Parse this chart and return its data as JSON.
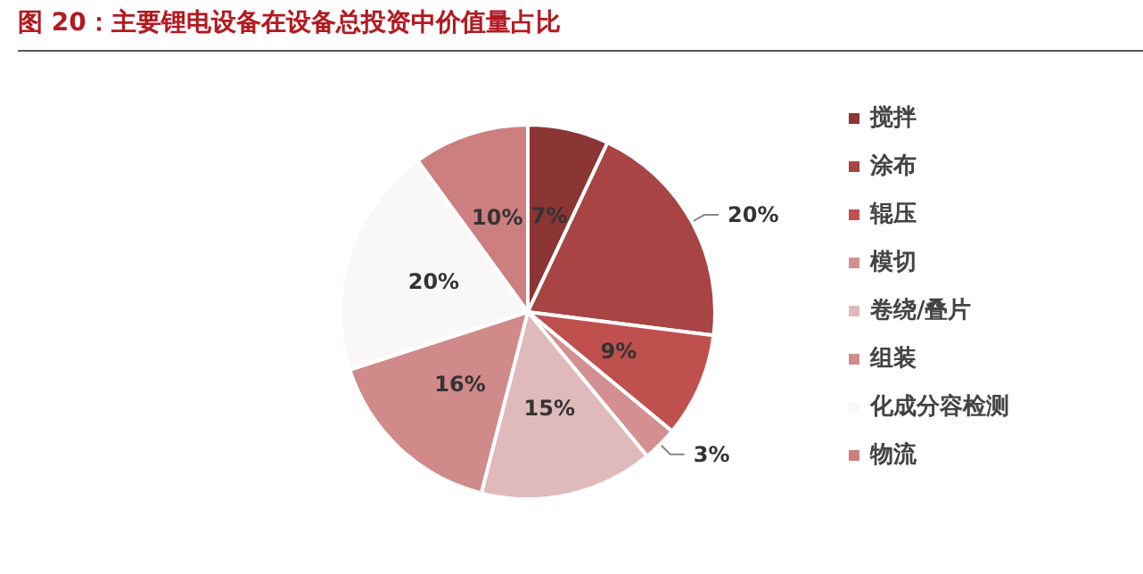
{
  "chart_data": {
    "type": "pie",
    "title": "图 20：主要锂电设备在设备总投资中价值量占比",
    "categories": [
      "搅拌",
      "涂布",
      "辊压",
      "模切",
      "卷绕/叠片",
      "组装",
      "化成分容检测",
      "物流"
    ],
    "values": [
      7,
      20,
      9,
      3,
      15,
      16,
      20,
      10
    ],
    "colors": [
      "#8b3535",
      "#a84444",
      "#c0504d",
      "#d49090",
      "#e0baba",
      "#d08a8a",
      "#faf7f7",
      "#cd7f7f"
    ],
    "value_labels": [
      "7%",
      "20%",
      "9%",
      "3%",
      "15%",
      "16%",
      "20%",
      "10%"
    ],
    "legend": "right"
  }
}
